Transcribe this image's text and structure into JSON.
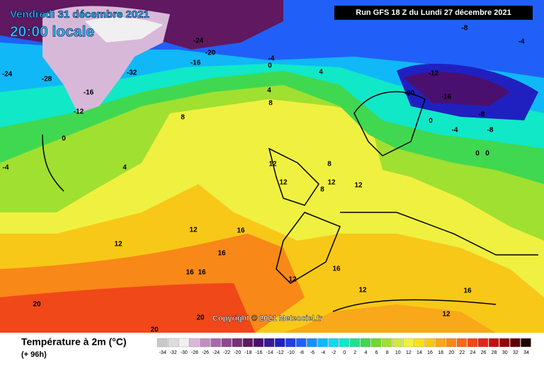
{
  "header": {
    "date": "Vendredi 31 décembre 2021",
    "time": "20:00 locale",
    "run": "Run GFS 18 Z du Lundi 27 décembre 2021"
  },
  "footer": {
    "title": "Température à 2m (°C)",
    "lead": "(+ 96h)",
    "copyright": "Copyright © 2021 Meteociel.fr"
  },
  "legend": {
    "values": [
      -34,
      -32,
      -30,
      -28,
      -26,
      -24,
      -22,
      -20,
      -18,
      -16,
      -14,
      -12,
      -10,
      -8,
      -6,
      -4,
      -2,
      0,
      2,
      4,
      6,
      8,
      10,
      12,
      14,
      16,
      18,
      20,
      22,
      24,
      26,
      28,
      30,
      32,
      34
    ],
    "colors": [
      "#c8c8c8",
      "#dcdcdc",
      "#f0f0f0",
      "#d8b8d8",
      "#c090c0",
      "#a868a8",
      "#904890",
      "#783078",
      "#601860",
      "#4a1070",
      "#3a1a98",
      "#2020c0",
      "#2040e0",
      "#2060f8",
      "#1890f8",
      "#10b8f8",
      "#10d8f0",
      "#10e8c8",
      "#20e090",
      "#40d850",
      "#70d830",
      "#a0e030",
      "#d0e840",
      "#f0f040",
      "#f8e020",
      "#f8c818",
      "#f8a818",
      "#f88818",
      "#f86818",
      "#f04818",
      "#e02818",
      "#c01010",
      "#900808",
      "#600000",
      "#200000"
    ]
  },
  "contour_labels": [
    12,
    12,
    12,
    12,
    16,
    16,
    16,
    16,
    20,
    20,
    20,
    12,
    12,
    16,
    8,
    8,
    4,
    4,
    4,
    0,
    -4,
    8,
    12,
    12,
    8,
    16,
    12,
    -12,
    -16,
    -20,
    -8,
    -8,
    0,
    -4,
    0,
    0,
    -24,
    -28,
    -32,
    -16,
    -12,
    -24,
    -20,
    -16,
    -4,
    -8,
    0,
    -4
  ]
}
